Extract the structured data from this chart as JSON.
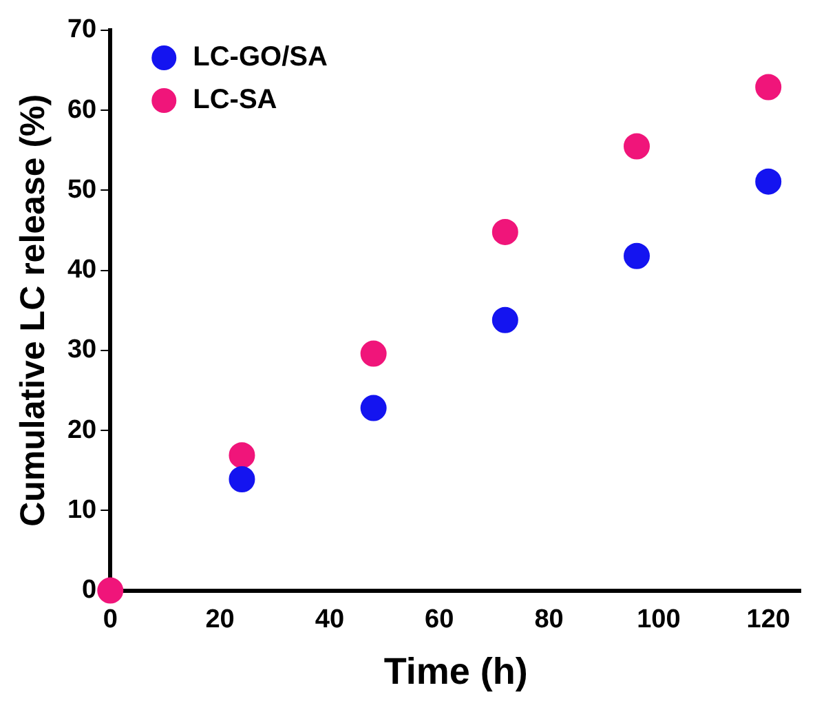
{
  "chart_data": {
    "type": "scatter",
    "xlabel": "Time (h)",
    "ylabel": "Cumulative LC release (%)",
    "xlim": [
      0,
      126
    ],
    "xticks": [
      0,
      20,
      40,
      60,
      80,
      100,
      120
    ],
    "ylim": [
      0,
      70
    ],
    "yticks": [
      0,
      10,
      20,
      30,
      40,
      50,
      60,
      70
    ],
    "grid": false,
    "legend": "top left",
    "marker": "circle",
    "series": [
      {
        "name": "LC-GO/SA",
        "color": "#1414f0",
        "x": [
          24,
          48,
          72,
          96,
          120
        ],
        "values": [
          13.9,
          22.8,
          33.8,
          41.8,
          51.1
        ]
      },
      {
        "name": "LC-SA",
        "color": "#f0157a",
        "x": [
          0,
          24,
          48,
          72,
          96,
          120
        ],
        "values": [
          0,
          16.9,
          29.6,
          44.8,
          55.5,
          62.9
        ]
      }
    ]
  }
}
